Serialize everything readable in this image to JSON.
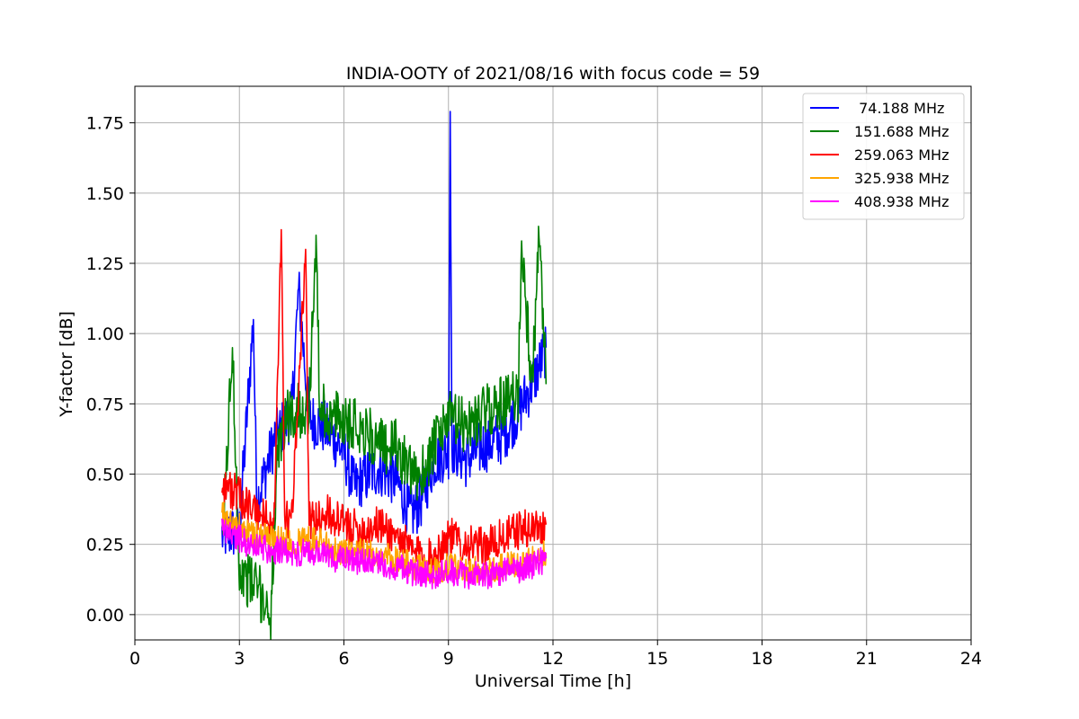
{
  "chart_data": {
    "type": "line",
    "title": "INDIA-OOTY of 2021/08/16 with focus code = 59",
    "xlabel": "Universal Time [h]",
    "ylabel": "Y-factor [dB]",
    "xlim": [
      0,
      24
    ],
    "ylim": [
      -0.09,
      1.88
    ],
    "xticks": [
      0,
      3,
      6,
      9,
      12,
      15,
      18,
      21,
      24
    ],
    "xtick_labels": [
      "0",
      "3",
      "6",
      "9",
      "12",
      "15",
      "18",
      "21",
      "24"
    ],
    "yticks": [
      0.0,
      0.25,
      0.5,
      0.75,
      1.0,
      1.25,
      1.5,
      1.75
    ],
    "ytick_labels": [
      "0.00",
      "0.25",
      "0.50",
      "0.75",
      "1.00",
      "1.25",
      "1.50",
      "1.75"
    ],
    "grid": true,
    "legend_position": "top-right",
    "series": [
      {
        "name": " 74.188 MHz",
        "color": "#0000ff",
        "x": [
          2.5,
          3.0,
          3.4,
          3.5,
          4.0,
          4.5,
          4.7,
          5.0,
          5.5,
          6.0,
          6.3,
          6.5,
          7.0,
          7.5,
          7.9,
          8.2,
          8.6,
          9.0,
          9.05,
          9.1,
          9.5,
          10.0,
          10.5,
          11.0,
          11.5,
          11.8
        ],
        "y": [
          0.28,
          0.3,
          1.05,
          0.4,
          0.62,
          0.72,
          1.16,
          0.7,
          0.66,
          0.58,
          0.45,
          0.48,
          0.52,
          0.48,
          0.35,
          0.4,
          0.55,
          0.58,
          1.79,
          0.6,
          0.55,
          0.6,
          0.63,
          0.72,
          0.85,
          0.95
        ]
      },
      {
        "name": "151.688 MHz",
        "color": "#008000",
        "x": [
          2.5,
          2.8,
          3.0,
          3.5,
          3.9,
          4.1,
          4.3,
          4.6,
          5.0,
          5.2,
          5.3,
          5.6,
          6.0,
          6.5,
          7.0,
          7.5,
          8.0,
          8.3,
          8.6,
          9.0,
          9.5,
          10.0,
          10.5,
          11.0,
          11.1,
          11.4,
          11.6,
          11.8
        ],
        "y": [
          0.22,
          0.95,
          0.15,
          0.1,
          0.0,
          0.55,
          0.7,
          0.72,
          0.74,
          1.35,
          0.75,
          0.7,
          0.7,
          0.67,
          0.6,
          0.6,
          0.48,
          0.52,
          0.6,
          0.7,
          0.67,
          0.72,
          0.75,
          0.78,
          1.33,
          0.8,
          1.34,
          0.82
        ]
      },
      {
        "name": "259.063 MHz",
        "color": "#ff0000",
        "x": [
          2.5,
          3.0,
          3.5,
          4.0,
          4.2,
          4.3,
          4.5,
          4.9,
          5.0,
          5.5,
          6.0,
          6.5,
          7.0,
          7.5,
          8.0,
          8.5,
          9.0,
          9.5,
          10.0,
          10.5,
          11.0,
          11.5,
          11.8
        ],
        "y": [
          0.47,
          0.42,
          0.36,
          0.33,
          1.37,
          0.34,
          0.33,
          1.3,
          0.33,
          0.36,
          0.32,
          0.3,
          0.32,
          0.28,
          0.22,
          0.2,
          0.28,
          0.25,
          0.24,
          0.27,
          0.3,
          0.31,
          0.32
        ]
      },
      {
        "name": "325.938 MHz",
        "color": "#ffa500",
        "x": [
          2.5,
          3.0,
          3.5,
          4.0,
          4.5,
          5.0,
          5.5,
          6.0,
          6.5,
          7.0,
          7.5,
          8.0,
          8.5,
          9.0,
          9.5,
          10.0,
          10.5,
          11.0,
          11.5,
          11.8
        ],
        "y": [
          0.36,
          0.31,
          0.28,
          0.27,
          0.26,
          0.27,
          0.25,
          0.22,
          0.22,
          0.21,
          0.2,
          0.17,
          0.16,
          0.17,
          0.16,
          0.16,
          0.17,
          0.18,
          0.2,
          0.22
        ]
      },
      {
        "name": "408.938 MHz",
        "color": "#ff00ff",
        "x": [
          2.5,
          3.0,
          3.5,
          4.0,
          4.5,
          5.0,
          5.5,
          6.0,
          6.5,
          7.0,
          7.5,
          8.0,
          8.5,
          9.0,
          9.5,
          10.0,
          10.5,
          11.0,
          11.5,
          11.8
        ],
        "y": [
          0.31,
          0.27,
          0.24,
          0.23,
          0.22,
          0.22,
          0.21,
          0.19,
          0.19,
          0.18,
          0.17,
          0.15,
          0.14,
          0.15,
          0.14,
          0.14,
          0.15,
          0.16,
          0.18,
          0.2
        ]
      }
    ]
  }
}
